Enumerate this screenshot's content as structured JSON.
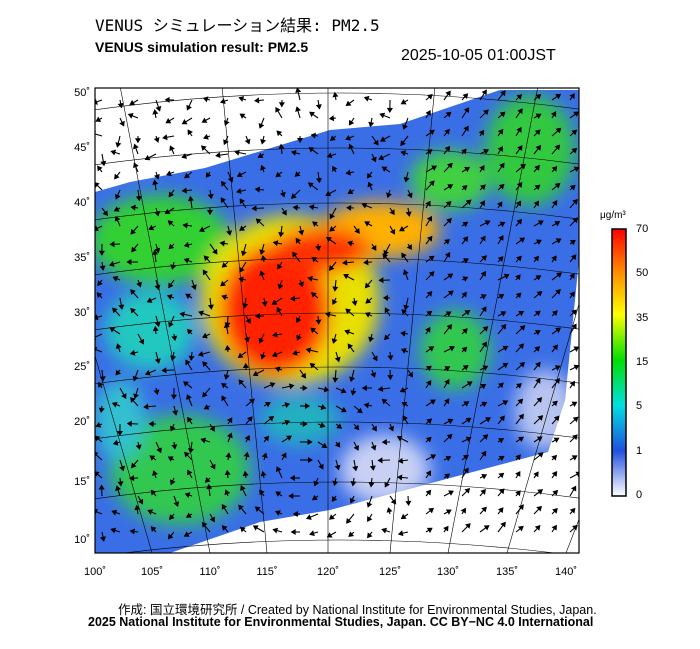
{
  "title_ja": "VENUS シミュレーション結果: PM2.5",
  "title_en": "VENUS simulation result: PM2.5",
  "timestamp": "2025-10-05 01:00JST",
  "map": {
    "lat_labels": [
      "50˚",
      "45˚",
      "40˚",
      "35˚",
      "30˚",
      "25˚",
      "20˚",
      "15˚",
      "10˚"
    ],
    "lon_labels": [
      "100˚",
      "105˚",
      "110˚",
      "115˚",
      "120˚",
      "125˚",
      "130˚",
      "135˚",
      "140˚"
    ]
  },
  "colorbar": {
    "unit": "μg/m³",
    "ticks": [
      "70",
      "50",
      "35",
      "15",
      "5",
      "1",
      "0"
    ],
    "colors": [
      "#ff0000",
      "#ff8c00",
      "#ffff00",
      "#00e000",
      "#00e0e0",
      "#2050e0",
      "#ffffff"
    ]
  },
  "footer": {
    "credit": "作成: 国立環境研究所 / Created by National Institute for Environmental Studies, Japan.",
    "license": "2025 National Institute for Environmental Studies, Japan. CC BY−NC 4.0 International"
  }
}
